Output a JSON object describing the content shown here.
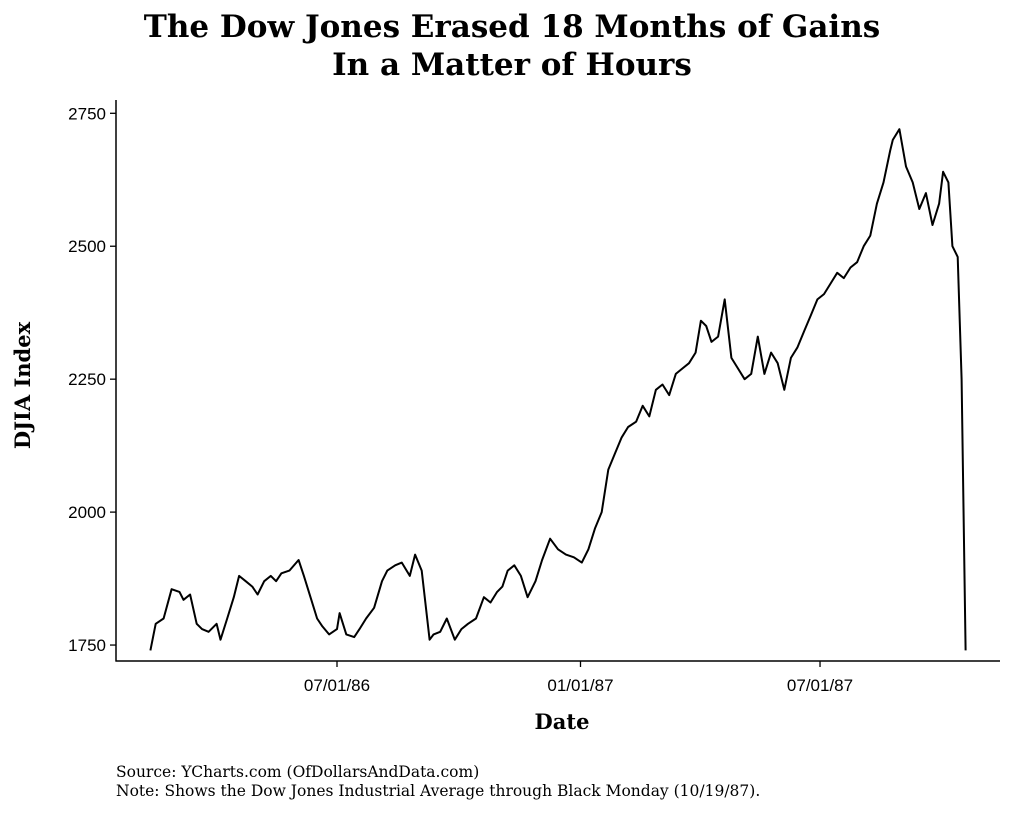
{
  "title_line1": "The Dow Jones Erased 18 Months of Gains",
  "title_line2": "In a Matter of Hours",
  "caption_source": "Source: YCharts.com (OfDollarsAndData.com)",
  "caption_note": "Note: Shows the Dow Jones Industrial Average through Black Monday (10/19/87).",
  "chart_data": {
    "type": "line",
    "title": "The Dow Jones Erased 18 Months of Gains In a Matter of Hours",
    "xlabel": "Date",
    "ylabel": "DJIA Index",
    "xlim": [
      "1986-01-15",
      "1987-11-14"
    ],
    "ylim": [
      1720,
      2775
    ],
    "grid": false,
    "legend": "none",
    "line_color": "#000000",
    "x_ticks": [
      {
        "date": "1986-07-01",
        "label": "07/01/86"
      },
      {
        "date": "1987-01-01",
        "label": "01/01/87"
      },
      {
        "date": "1987-07-01",
        "label": "07/01/87"
      }
    ],
    "y_ticks": [
      {
        "value": 1750,
        "label": "1750"
      },
      {
        "value": 2000,
        "label": "2000"
      },
      {
        "value": 2250,
        "label": "2250"
      },
      {
        "value": 2500,
        "label": "2500"
      },
      {
        "value": 2750,
        "label": "2750"
      }
    ],
    "series": [
      {
        "x": [
          "1986-02-10",
          "1986-02-14",
          "1986-02-20",
          "1986-02-26",
          "1986-03-04",
          "1986-03-07",
          "1986-03-12",
          "1986-03-17",
          "1986-03-21",
          "1986-03-26",
          "1986-04-01",
          "1986-04-04",
          "1986-04-09",
          "1986-04-14",
          "1986-04-18",
          "1986-04-23",
          "1986-04-28",
          "1986-05-02",
          "1986-05-07",
          "1986-05-12",
          "1986-05-16",
          "1986-05-20",
          "1986-05-26",
          "1986-06-02",
          "1986-06-06",
          "1986-06-11",
          "1986-06-16",
          "1986-06-20",
          "1986-06-25",
          "1986-07-01",
          "1986-07-03",
          "1986-07-08",
          "1986-07-14",
          "1986-07-18",
          "1986-07-23",
          "1986-07-29",
          "1986-08-04",
          "1986-08-08",
          "1986-08-14",
          "1986-08-19",
          "1986-08-25",
          "1986-08-29",
          "1986-09-03",
          "1986-09-09",
          "1986-09-12",
          "1986-09-17",
          "1986-09-22",
          "1986-09-28",
          "1986-10-03",
          "1986-10-08",
          "1986-10-14",
          "1986-10-20",
          "1986-10-25",
          "1986-10-30",
          "1986-11-03",
          "1986-11-07",
          "1986-11-12",
          "1986-11-17",
          "1986-11-22",
          "1986-11-28",
          "1986-12-03",
          "1986-12-09",
          "1986-12-15",
          "1986-12-21",
          "1986-12-27",
          "1987-01-02",
          "1987-01-07",
          "1987-01-12",
          "1987-01-17",
          "1987-01-22",
          "1987-01-27",
          "1987-02-01",
          "1987-02-06",
          "1987-02-12",
          "1987-02-17",
          "1987-02-22",
          "1987-02-27",
          "1987-03-04",
          "1987-03-09",
          "1987-03-14",
          "1987-03-19",
          "1987-03-24",
          "1987-03-29",
          "1987-04-02",
          "1987-04-06",
          "1987-04-10",
          "1987-04-15",
          "1987-04-20",
          "1987-04-25",
          "1987-04-30",
          "1987-05-05",
          "1987-05-10",
          "1987-05-15",
          "1987-05-20",
          "1987-05-25",
          "1987-05-30",
          "1987-06-04",
          "1987-06-09",
          "1987-06-14",
          "1987-06-19",
          "1987-06-24",
          "1987-06-29",
          "1987-07-04",
          "1987-07-09",
          "1987-07-14",
          "1987-07-19",
          "1987-07-24",
          "1987-07-29",
          "1987-08-03",
          "1987-08-08",
          "1987-08-13",
          "1987-08-18",
          "1987-08-23",
          "1987-08-25",
          "1987-08-30",
          "1987-09-04",
          "1987-09-09",
          "1987-09-14",
          "1987-09-19",
          "1987-09-24",
          "1987-09-29",
          "1987-10-02",
          "1987-10-06",
          "1987-10-09",
          "1987-10-13",
          "1987-10-16",
          "1987-10-19"
        ],
        "y": [
          1740,
          1790,
          1800,
          1855,
          1850,
          1835,
          1845,
          1790,
          1780,
          1775,
          1790,
          1760,
          1800,
          1840,
          1880,
          1870,
          1860,
          1845,
          1870,
          1880,
          1870,
          1885,
          1890,
          1910,
          1880,
          1840,
          1800,
          1785,
          1770,
          1780,
          1810,
          1770,
          1765,
          1780,
          1800,
          1820,
          1870,
          1890,
          1900,
          1905,
          1880,
          1920,
          1890,
          1760,
          1770,
          1775,
          1800,
          1760,
          1780,
          1790,
          1800,
          1840,
          1830,
          1850,
          1860,
          1890,
          1900,
          1880,
          1840,
          1870,
          1910,
          1950,
          1930,
          1920,
          1915,
          1905,
          1930,
          1970,
          2000,
          2080,
          2110,
          2140,
          2160,
          2170,
          2200,
          2180,
          2230,
          2240,
          2220,
          2260,
          2270,
          2280,
          2300,
          2360,
          2350,
          2320,
          2330,
          2400,
          2290,
          2270,
          2250,
          2260,
          2330,
          2260,
          2300,
          2280,
          2230,
          2290,
          2310,
          2340,
          2370,
          2400,
          2410,
          2430,
          2450,
          2440,
          2460,
          2470,
          2500,
          2520,
          2580,
          2620,
          2680,
          2700,
          2720,
          2650,
          2620,
          2570,
          2600,
          2540,
          2580,
          2640,
          2620,
          2500,
          2480,
          2250,
          1740
        ]
      }
    ]
  }
}
